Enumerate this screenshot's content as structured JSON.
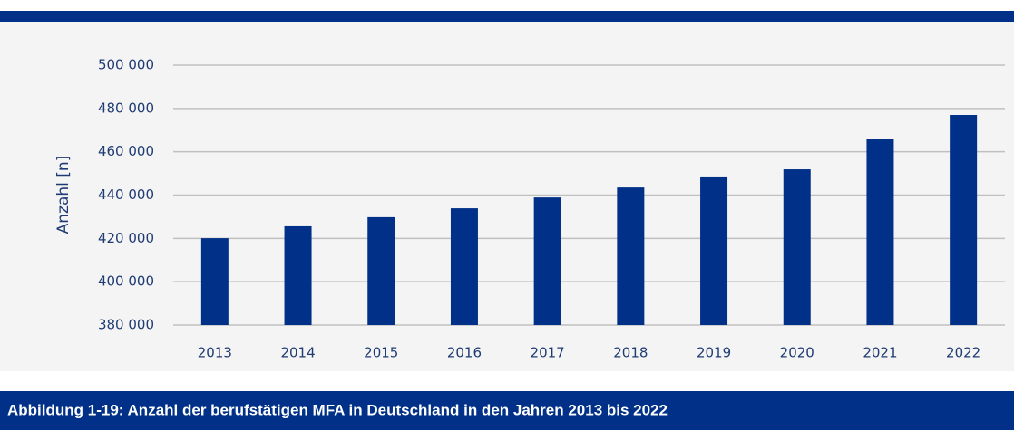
{
  "chart_data": {
    "type": "bar",
    "caption": "Abbildung 1-19:  Anzahl der berufstätigen MFA in Deutschland in den Jahren 2013 bis 2022",
    "ylabel": "Anzahl [n]",
    "categories": [
      "2013",
      "2014",
      "2015",
      "2016",
      "2017",
      "2018",
      "2019",
      "2020",
      "2021",
      "2022"
    ],
    "values": [
      420100,
      425600,
      429800,
      433900,
      438900,
      443500,
      448600,
      451900,
      466100,
      477000
    ],
    "color": "#003087",
    "ylim": [
      380000,
      500000
    ],
    "yticks": [
      {
        "value": 380000,
        "label": "380 000"
      },
      {
        "value": 400000,
        "label": "400 000"
      },
      {
        "value": 420000,
        "label": "420 000"
      },
      {
        "value": 440000,
        "label": "440 000"
      },
      {
        "value": 460000,
        "label": "460 000"
      },
      {
        "value": 480000,
        "label": "480 000"
      },
      {
        "value": 500000,
        "label": "500 000"
      }
    ],
    "grid": true
  }
}
